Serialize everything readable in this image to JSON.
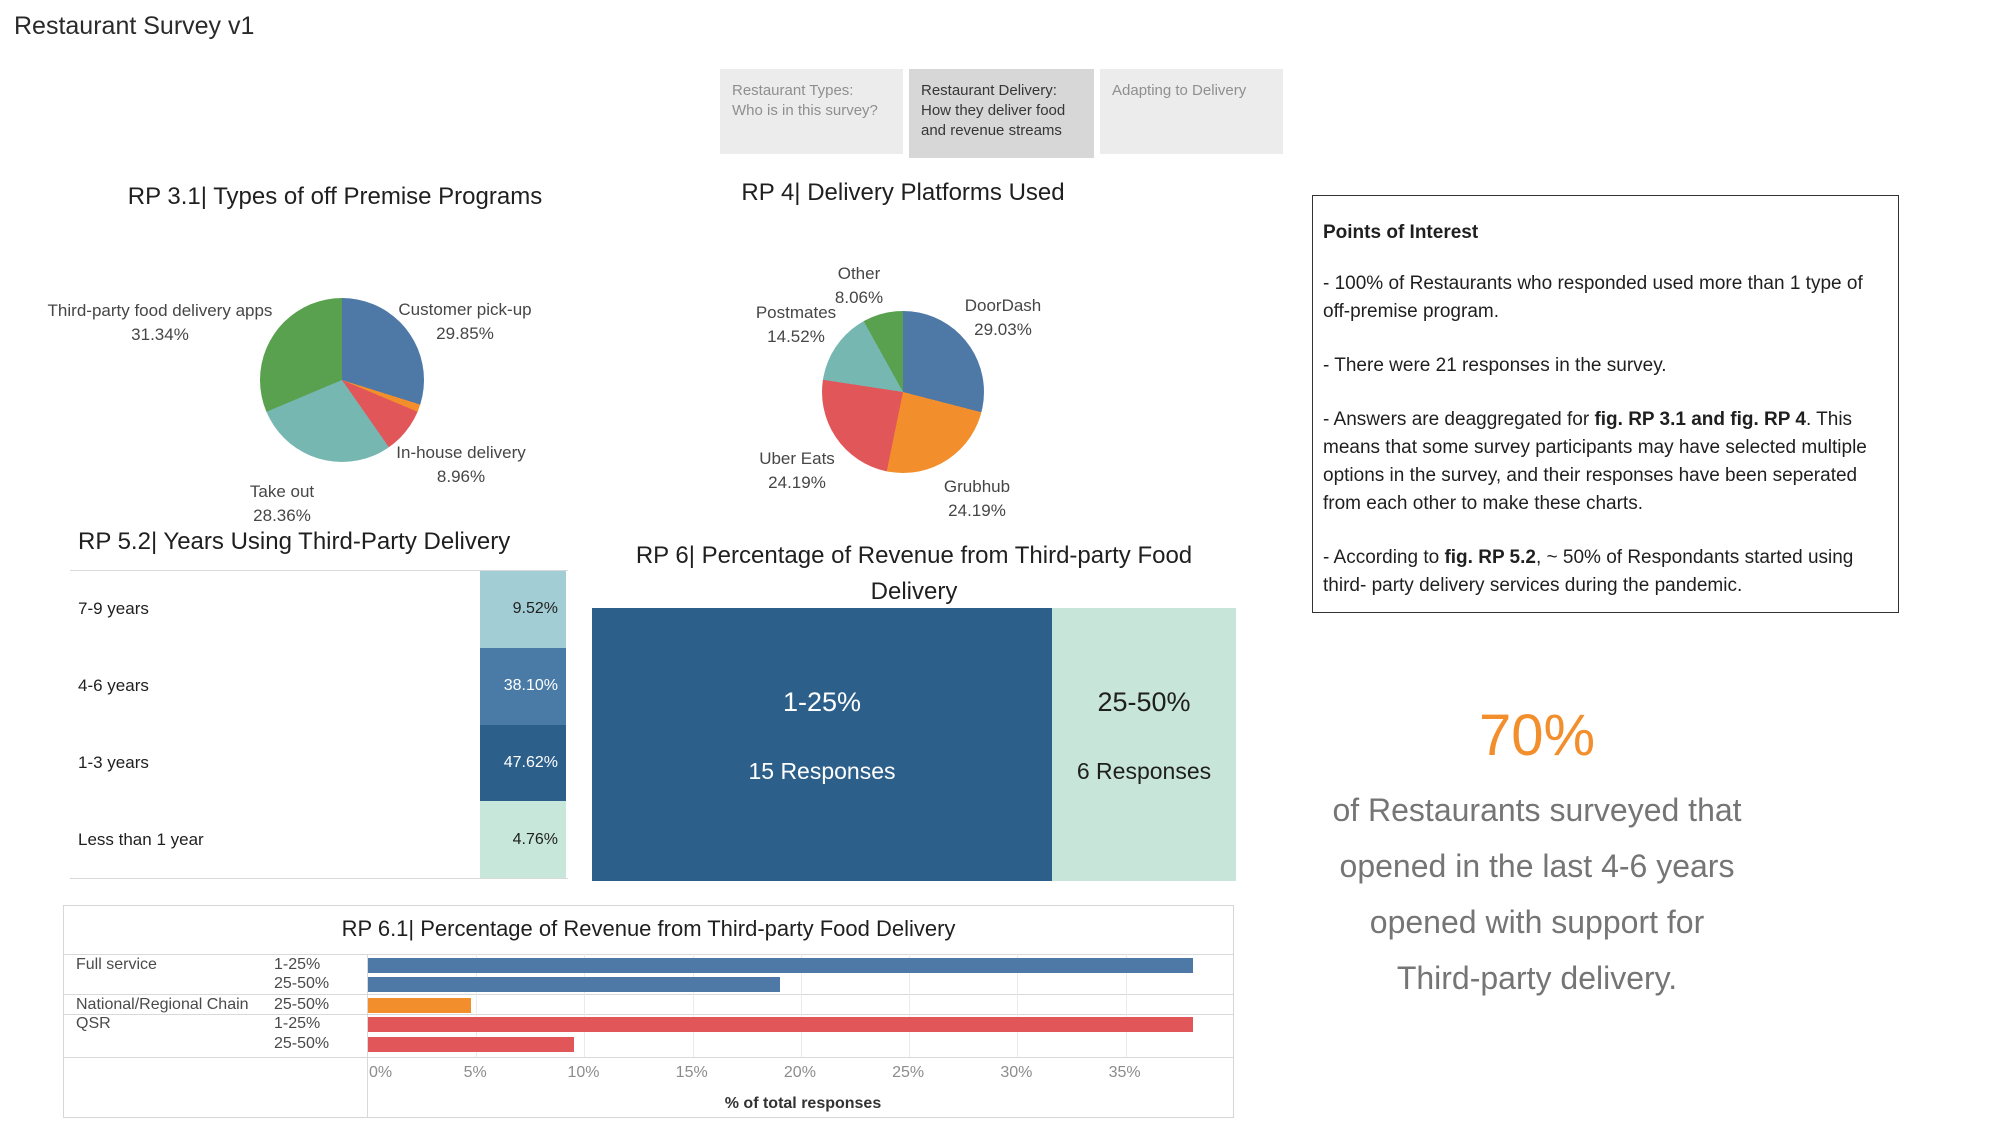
{
  "app": {
    "title": "Restaurant Survey v1"
  },
  "colors": {
    "blue": "#4e79a7",
    "orange": "#f28e2b",
    "red": "#e15759",
    "teal": "#76b7b2",
    "green": "#59a14f",
    "dark_blue": "#2d5f8b",
    "mid_blue": "#4a7ba7",
    "light_teal": "#a3cdd4",
    "mint": "#c7e5d8",
    "callout_orange": "#f28e2b",
    "tab_active_bg": "#d7d7d7",
    "tab_bg": "#ececec"
  },
  "tabs": [
    {
      "lines": [
        "Restaurant Types:",
        "Who is in this survey?"
      ],
      "active": false
    },
    {
      "lines": [
        "Restaurant Delivery:",
        "How they deliver food",
        "and revenue streams"
      ],
      "active": true
    },
    {
      "lines": [
        "Adapting to Delivery"
      ],
      "active": false
    }
  ],
  "chart_data": [
    {
      "id": "rp31",
      "type": "pie",
      "title": "RP 3.1| Types of off Premise Programs",
      "slices": [
        {
          "label": "Customer pick-up",
          "pct": 29.85,
          "color": "#4e79a7"
        },
        {
          "label": "",
          "pct": 1.49,
          "color": "#f28e2b"
        },
        {
          "label": "In-house delivery",
          "pct": 8.96,
          "color": "#e15759"
        },
        {
          "label": "Take out",
          "pct": 28.36,
          "color": "#76b7b2"
        },
        {
          "label": "Third-party food delivery apps",
          "pct": 31.34,
          "color": "#59a14f"
        }
      ]
    },
    {
      "id": "rp4",
      "type": "pie",
      "title": "RP 4| Delivery Platforms Used",
      "slices": [
        {
          "label": "DoorDash",
          "pct": 29.03,
          "color": "#4e79a7"
        },
        {
          "label": "Grubhub",
          "pct": 24.19,
          "color": "#f28e2b"
        },
        {
          "label": "Uber Eats",
          "pct": 24.19,
          "color": "#e15759"
        },
        {
          "label": "Postmates",
          "pct": 14.52,
          "color": "#76b7b2"
        },
        {
          "label": "Other",
          "pct": 8.06,
          "color": "#59a14f"
        }
      ]
    },
    {
      "id": "rp52",
      "type": "bar",
      "title": "RP 5.2| Years Using Third-Party Delivery",
      "categories": [
        "7-9 years",
        "4-6 years",
        "1-3 years",
        "Less than 1 year"
      ],
      "values": [
        9.52,
        38.1,
        47.62,
        4.76
      ],
      "cell_colors": [
        "#a3cdd4",
        "#4a7ba7",
        "#2d5f8b",
        "#c6e7da"
      ],
      "value_text_colors": [
        "#1f1f1f",
        "#ffffff",
        "#ffffff",
        "#1f1f1f"
      ]
    },
    {
      "id": "rp6",
      "type": "treemap",
      "title_lines": [
        "RP 6| Percentage of Revenue from Third-party Food",
        "Delivery"
      ],
      "blocks": [
        {
          "label": "1-25%",
          "sublabel": "15 Responses",
          "responses": 15,
          "color": "#2d5f8b",
          "text_color": "#ffffff"
        },
        {
          "label": "25-50%",
          "sublabel": "6 Responses",
          "responses": 6,
          "color": "#c7e5d8",
          "text_color": "#1f1f1f"
        }
      ]
    },
    {
      "id": "rp61",
      "type": "bar",
      "title": "RP 6.1| Percentage of Revenue from Third-party Food Delivery",
      "xlabel": "% of total responses",
      "x_ticks": [
        "0%",
        "5%",
        "10%",
        "15%",
        "20%",
        "25%",
        "30%",
        "35%"
      ],
      "x_tick_values": [
        0,
        5,
        10,
        15,
        20,
        25,
        30,
        35
      ],
      "xlim": [
        0,
        40.1
      ],
      "rows": [
        {
          "group": "Full service",
          "segment": "1-25%",
          "value": 38.1,
          "color": "#4e79a7"
        },
        {
          "group": "Full service",
          "segment": "25-50%",
          "value": 19.05,
          "color": "#4e79a7"
        },
        {
          "group": "National/Regional Chain",
          "segment": "25-50%",
          "value": 4.76,
          "color": "#f28e2b"
        },
        {
          "group": "QSR",
          "segment": "1-25%",
          "value": 38.1,
          "color": "#e15759"
        },
        {
          "group": "QSR",
          "segment": "25-50%",
          "value": 9.52,
          "color": "#e15759"
        }
      ]
    }
  ],
  "points_of_interest": {
    "title": "Points of Interest",
    "paragraphs": [
      [
        {
          "t": "- 100% of Restaurants who responded used more than 1 type of off-premise program."
        }
      ],
      [
        {
          "t": "- There were 21 responses in the survey."
        }
      ],
      [
        {
          "t": "- Answers are deaggregated for "
        },
        {
          "t": "fig. RP 3.1 and fig. RP 4",
          "b": true
        },
        {
          "t": ".  This means that some survey participants may have selected multiple options in the survey, and their responses have been seperated from each other to make these charts."
        }
      ],
      [
        {
          "t": "- According to "
        },
        {
          "t": "fig. RP 5.2",
          "b": true
        },
        {
          "t": ", ~ 50% of Respondants started using third- party delivery services during the pandemic."
        }
      ]
    ]
  },
  "callout": {
    "value": "70%",
    "lines": [
      "of Restaurants surveyed that",
      "opened in the last 4-6 years",
      "opened with support for",
      "Third-party delivery."
    ]
  }
}
